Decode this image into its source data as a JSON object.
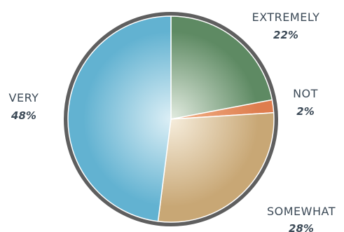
{
  "chart_data": {
    "type": "pie",
    "start_angle_deg": 0,
    "direction": "clockwise",
    "slices": [
      {
        "label": "EXTREMELY",
        "value": 22,
        "value_label": "22%",
        "color": "#5e8a63",
        "highlight": "#e3ece1"
      },
      {
        "label": "NOT",
        "value": 2,
        "value_label": "2%",
        "color": "#de7d4e",
        "highlight": "#f2b58c"
      },
      {
        "label": "SOMEWHAT",
        "value": 28,
        "value_label": "28%",
        "color": "#c8a775",
        "highlight": "#f6eddc"
      },
      {
        "label": "VERY",
        "value": 48,
        "value_label": "48%",
        "color": "#62b2d1",
        "highlight": "#dceff6"
      }
    ],
    "border_color": "#5f5f5f",
    "title": "",
    "legend": "none"
  }
}
